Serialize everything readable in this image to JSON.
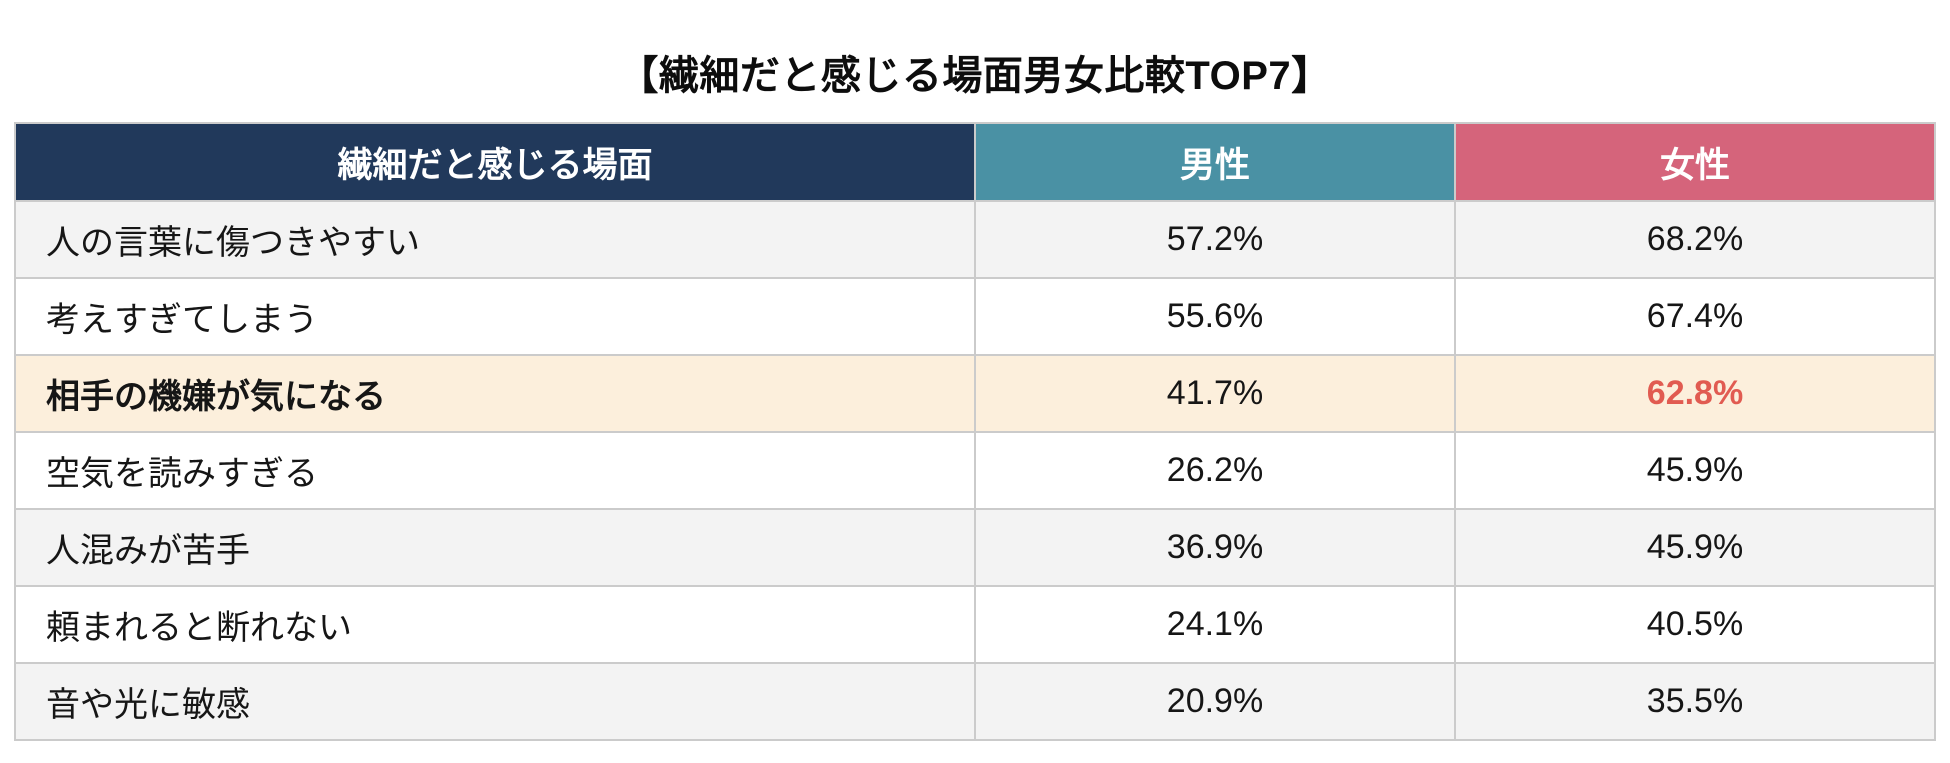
{
  "title": "【繊細だと感じる場面男女比較TOP7】",
  "colors": {
    "header_category_bg": "#21395b",
    "header_male_bg": "#4a91a4",
    "header_female_bg": "#d5647b",
    "header_text": "#ffffff",
    "row_bg": "#ffffff",
    "row_alt_bg": "#f3f3f3",
    "highlight_row_bg": "#fcefdc",
    "highlight_value_color": "#e15b51",
    "border": "#cbcbcb"
  },
  "table": {
    "columns": [
      "繊細だと感じる場面",
      "男性",
      "女性"
    ],
    "rows": [
      {
        "label": "人の言葉に傷つきやすい",
        "male": "57.2%",
        "female": "68.2%"
      },
      {
        "label": "考えすぎてしまう",
        "male": "55.6%",
        "female": "67.4%"
      },
      {
        "label": "相手の機嫌が気になる",
        "male": "41.7%",
        "female": "62.8%"
      },
      {
        "label": "空気を読みすぎる",
        "male": "26.2%",
        "female": "45.9%"
      },
      {
        "label": "人混みが苦手",
        "male": "36.9%",
        "female": "45.9%"
      },
      {
        "label": "頼まれると断れない",
        "male": "24.1%",
        "female": "40.5%"
      },
      {
        "label": "音や光に敏感",
        "male": "20.9%",
        "female": "35.5%"
      }
    ]
  },
  "chart_data": {
    "type": "table",
    "title": "【繊細だと感じる場面男女比較TOP7】",
    "categories": [
      "人の言葉に傷つきやすい",
      "考えすぎてしまう",
      "相手の機嫌が気になる",
      "空気を読みすぎる",
      "人混みが苦手",
      "頼まれると断れない",
      "音や光に敏感"
    ],
    "series": [
      {
        "name": "男性",
        "values": [
          57.2,
          55.6,
          41.7,
          26.2,
          36.9,
          24.1,
          20.9
        ]
      },
      {
        "name": "女性",
        "values": [
          68.2,
          67.4,
          62.8,
          45.9,
          45.9,
          40.5,
          35.5
        ]
      }
    ],
    "unit": "%",
    "highlighted_row": "相手の機嫌が気になる",
    "highlighted_value": "62.8%"
  }
}
